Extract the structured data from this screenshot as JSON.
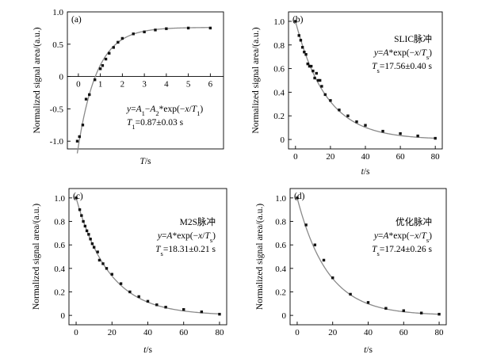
{
  "chart_data": [
    {
      "type": "scatter",
      "panel_label": "(a)",
      "xlabel": "T/s",
      "ylabel": "Normalized signal area/(a.u.)",
      "xlim": [
        -0.5,
        6.6
      ],
      "ylim": [
        -1.12,
        1.0
      ],
      "xticks": [
        0,
        1,
        2,
        3,
        4,
        5,
        6
      ],
      "yticks": [
        -1.0,
        -0.5,
        0,
        0.5,
        1.0
      ],
      "ytick_labels": [
        "-1.0",
        "-0.5",
        "0",
        "0.5",
        "1.0"
      ],
      "grid": false,
      "zero_line": true,
      "annotation_lines": [
        "y=A1-A2*exp(-x/T1)",
        "T1=0.87±0.03 s"
      ],
      "fit": {
        "model": "inversion_recovery",
        "A1": 0.76,
        "A2": 1.84,
        "T": 0.87
      },
      "series": [
        {
          "x": [
            -0.05,
            0.05,
            0.2,
            0.35,
            0.5,
            0.75,
            1.0,
            1.1,
            1.25,
            1.4,
            1.6,
            1.8,
            2.0,
            2.5,
            3.0,
            3.5,
            4.0,
            5.0,
            6.0
          ],
          "y": [
            -1.0,
            -0.93,
            -0.75,
            -0.35,
            -0.28,
            -0.05,
            0.12,
            0.17,
            0.27,
            0.36,
            0.45,
            0.53,
            0.59,
            0.66,
            0.69,
            0.72,
            0.74,
            0.75,
            0.75
          ]
        }
      ]
    },
    {
      "type": "scatter",
      "panel_label": "(b)",
      "xlabel": "t/s",
      "ylabel": "Normalized signal area/(a.u.)",
      "xlim": [
        -4,
        84
      ],
      "ylim": [
        -0.08,
        1.08
      ],
      "xticks": [
        0,
        20,
        40,
        60,
        80
      ],
      "yticks": [
        0,
        0.2,
        0.4,
        0.6,
        0.8,
        1.0
      ],
      "ytick_labels": [
        "0",
        "0.2",
        "0.4",
        "0.6",
        "0.8",
        "1.0"
      ],
      "grid": false,
      "annotation_lines": [
        "SLIC脉冲",
        "y=A*exp(-x/Ts)",
        "Ts=17.56±0.40 s"
      ],
      "fit": {
        "model": "exp_decay",
        "A": 1.0,
        "T": 17.56
      },
      "series": [
        {
          "x": [
            0,
            2,
            3,
            4,
            5,
            6,
            7,
            8,
            9,
            10,
            11,
            12,
            13,
            14,
            15,
            17,
            20,
            25,
            30,
            35,
            40,
            50,
            60,
            70,
            80
          ],
          "y": [
            1.0,
            0.88,
            0.84,
            0.78,
            0.74,
            0.72,
            0.64,
            0.62,
            0.62,
            0.58,
            0.52,
            0.56,
            0.5,
            0.5,
            0.45,
            0.38,
            0.33,
            0.25,
            0.2,
            0.15,
            0.12,
            0.07,
            0.05,
            0.03,
            0.01
          ]
        }
      ]
    },
    {
      "type": "scatter",
      "panel_label": "(c)",
      "xlabel": "t/s",
      "ylabel": "Normalized signal area/(a.u.)",
      "xlim": [
        -4,
        84
      ],
      "ylim": [
        -0.08,
        1.08
      ],
      "xticks": [
        0,
        20,
        40,
        60,
        80
      ],
      "yticks": [
        0,
        0.2,
        0.4,
        0.6,
        0.8,
        1.0
      ],
      "ytick_labels": [
        "0",
        "0.2",
        "0.4",
        "0.6",
        "0.8",
        "1.0"
      ],
      "grid": false,
      "annotation_lines": [
        "M2S脉冲",
        "y=A*exp(-x/Ts)",
        "Ts=18.31±0.21 s"
      ],
      "fit": {
        "model": "exp_decay",
        "A": 1.0,
        "T": 18.31
      },
      "series": [
        {
          "x": [
            0,
            2,
            3,
            4,
            5,
            6,
            7,
            8,
            9,
            10,
            12,
            13,
            15,
            17,
            20,
            25,
            30,
            35,
            40,
            45,
            50,
            60,
            70,
            80
          ],
          "y": [
            1.0,
            0.9,
            0.85,
            0.8,
            0.76,
            0.72,
            0.69,
            0.65,
            0.61,
            0.58,
            0.54,
            0.47,
            0.44,
            0.4,
            0.35,
            0.27,
            0.2,
            0.16,
            0.12,
            0.09,
            0.07,
            0.05,
            0.03,
            0.01
          ]
        }
      ]
    },
    {
      "type": "scatter",
      "panel_label": "(d)",
      "xlabel": "t/s",
      "ylabel": "Normalized signal area/(a.u.)",
      "xlim": [
        -4,
        84
      ],
      "ylim": [
        -0.08,
        1.08
      ],
      "xticks": [
        0,
        20,
        40,
        60,
        80
      ],
      "yticks": [
        0,
        0.2,
        0.4,
        0.6,
        0.8,
        1.0
      ],
      "ytick_labels": [
        "0",
        "0.2",
        "0.4",
        "0.6",
        "0.8",
        "1.0"
      ],
      "grid": false,
      "annotation_lines": [
        "优化脉冲",
        "y=A*exp(-x/Ts)",
        "Ts=17.24±0.26 s"
      ],
      "fit": {
        "model": "exp_decay",
        "A": 1.0,
        "T": 17.24
      },
      "series": [
        {
          "x": [
            0,
            5,
            10,
            15,
            20,
            30,
            40,
            50,
            60,
            70,
            80
          ],
          "y": [
            1.0,
            0.77,
            0.6,
            0.47,
            0.32,
            0.18,
            0.11,
            0.06,
            0.04,
            0.02,
            0.01
          ]
        }
      ]
    }
  ]
}
